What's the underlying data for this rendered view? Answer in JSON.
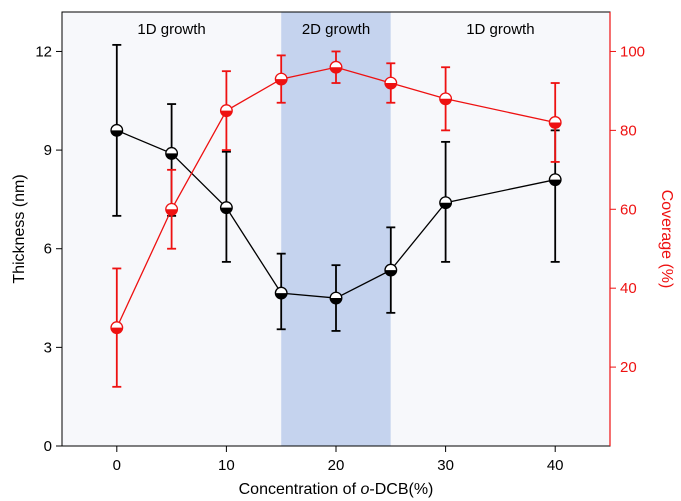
{
  "chart_data": {
    "type": "line",
    "x": [
      0,
      5,
      10,
      15,
      20,
      25,
      30,
      40
    ],
    "xlabel_parts": [
      "Concentration of ",
      "o",
      "-DCB(%)"
    ],
    "xlim": [
      -5,
      45
    ],
    "xticks": [
      0,
      10,
      20,
      30,
      40
    ],
    "ylabel_left": "Thickness (nm)",
    "ylim_left": [
      0,
      13.2
    ],
    "yticks_left": [
      0,
      3,
      6,
      9,
      12
    ],
    "ylabel_right": "Coverage (%)",
    "ylim_right": [
      0,
      110
    ],
    "yticks_right": [
      20,
      40,
      60,
      80,
      100
    ],
    "grid": false,
    "legend": "none",
    "regions": [
      {
        "label": "1D growth",
        "x_range": [
          -5,
          15
        ],
        "color": "#f7f8fb"
      },
      {
        "label": "2D growth",
        "x_range": [
          15,
          25
        ],
        "color": "#c5d3ee"
      },
      {
        "label": "1D growth",
        "x_range": [
          25,
          45
        ],
        "color": "#f7f8fb"
      }
    ],
    "series": [
      {
        "axis": "left",
        "color": "#000000",
        "values": [
          9.6,
          8.9,
          7.25,
          4.65,
          4.5,
          5.35,
          7.4,
          8.1
        ],
        "err_low": [
          2.6,
          1.9,
          1.65,
          1.1,
          1.0,
          1.3,
          1.8,
          2.5
        ],
        "err_high": [
          2.6,
          1.5,
          1.7,
          1.2,
          1.0,
          1.3,
          1.85,
          1.5
        ]
      },
      {
        "axis": "right",
        "color": "#ee1111",
        "values": [
          30,
          60,
          85,
          93,
          96,
          92,
          88,
          82
        ],
        "err_low": [
          15,
          10,
          10,
          6,
          4,
          5,
          8,
          10
        ],
        "err_high": [
          15,
          10,
          10,
          6,
          4,
          5,
          8,
          10
        ]
      }
    ]
  }
}
